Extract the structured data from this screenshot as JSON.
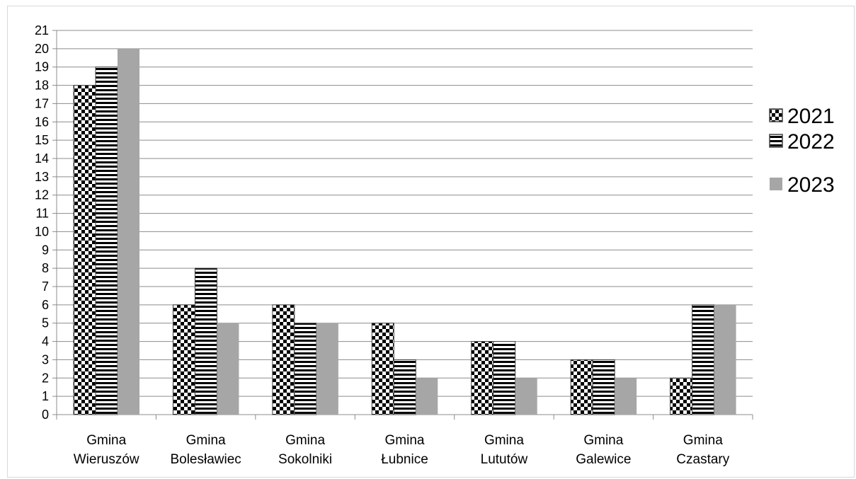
{
  "chart_data": {
    "type": "bar",
    "title": "",
    "xlabel": "",
    "ylabel": "",
    "ylim": [
      0,
      21
    ],
    "yticks": [
      0,
      1,
      2,
      3,
      4,
      5,
      6,
      7,
      8,
      9,
      10,
      11,
      12,
      13,
      14,
      15,
      16,
      17,
      18,
      19,
      20,
      21
    ],
    "grid": true,
    "legend_position": "right",
    "categories": [
      [
        "Gmina",
        "Wieruszów"
      ],
      [
        "Gmina",
        "Bolesławiec"
      ],
      [
        "Gmina",
        "Sokolniki"
      ],
      [
        "Gmina",
        "Łubnice"
      ],
      [
        "Gmina",
        "Lututów"
      ],
      [
        "Gmina",
        "Galewice"
      ],
      [
        "Gmina",
        "Czastary"
      ]
    ],
    "series": [
      {
        "name": "2021",
        "pattern": "checker",
        "color": "#000000",
        "values": [
          18,
          6,
          6,
          5,
          4,
          3,
          2
        ]
      },
      {
        "name": "2022",
        "pattern": "horizontal-stripes",
        "color": "#000000",
        "values": [
          19,
          8,
          5,
          3,
          4,
          3,
          6
        ]
      },
      {
        "name": "2023",
        "pattern": "solid",
        "color": "#a6a6a6",
        "values": [
          20,
          5,
          5,
          2,
          2,
          2,
          6
        ]
      }
    ]
  }
}
